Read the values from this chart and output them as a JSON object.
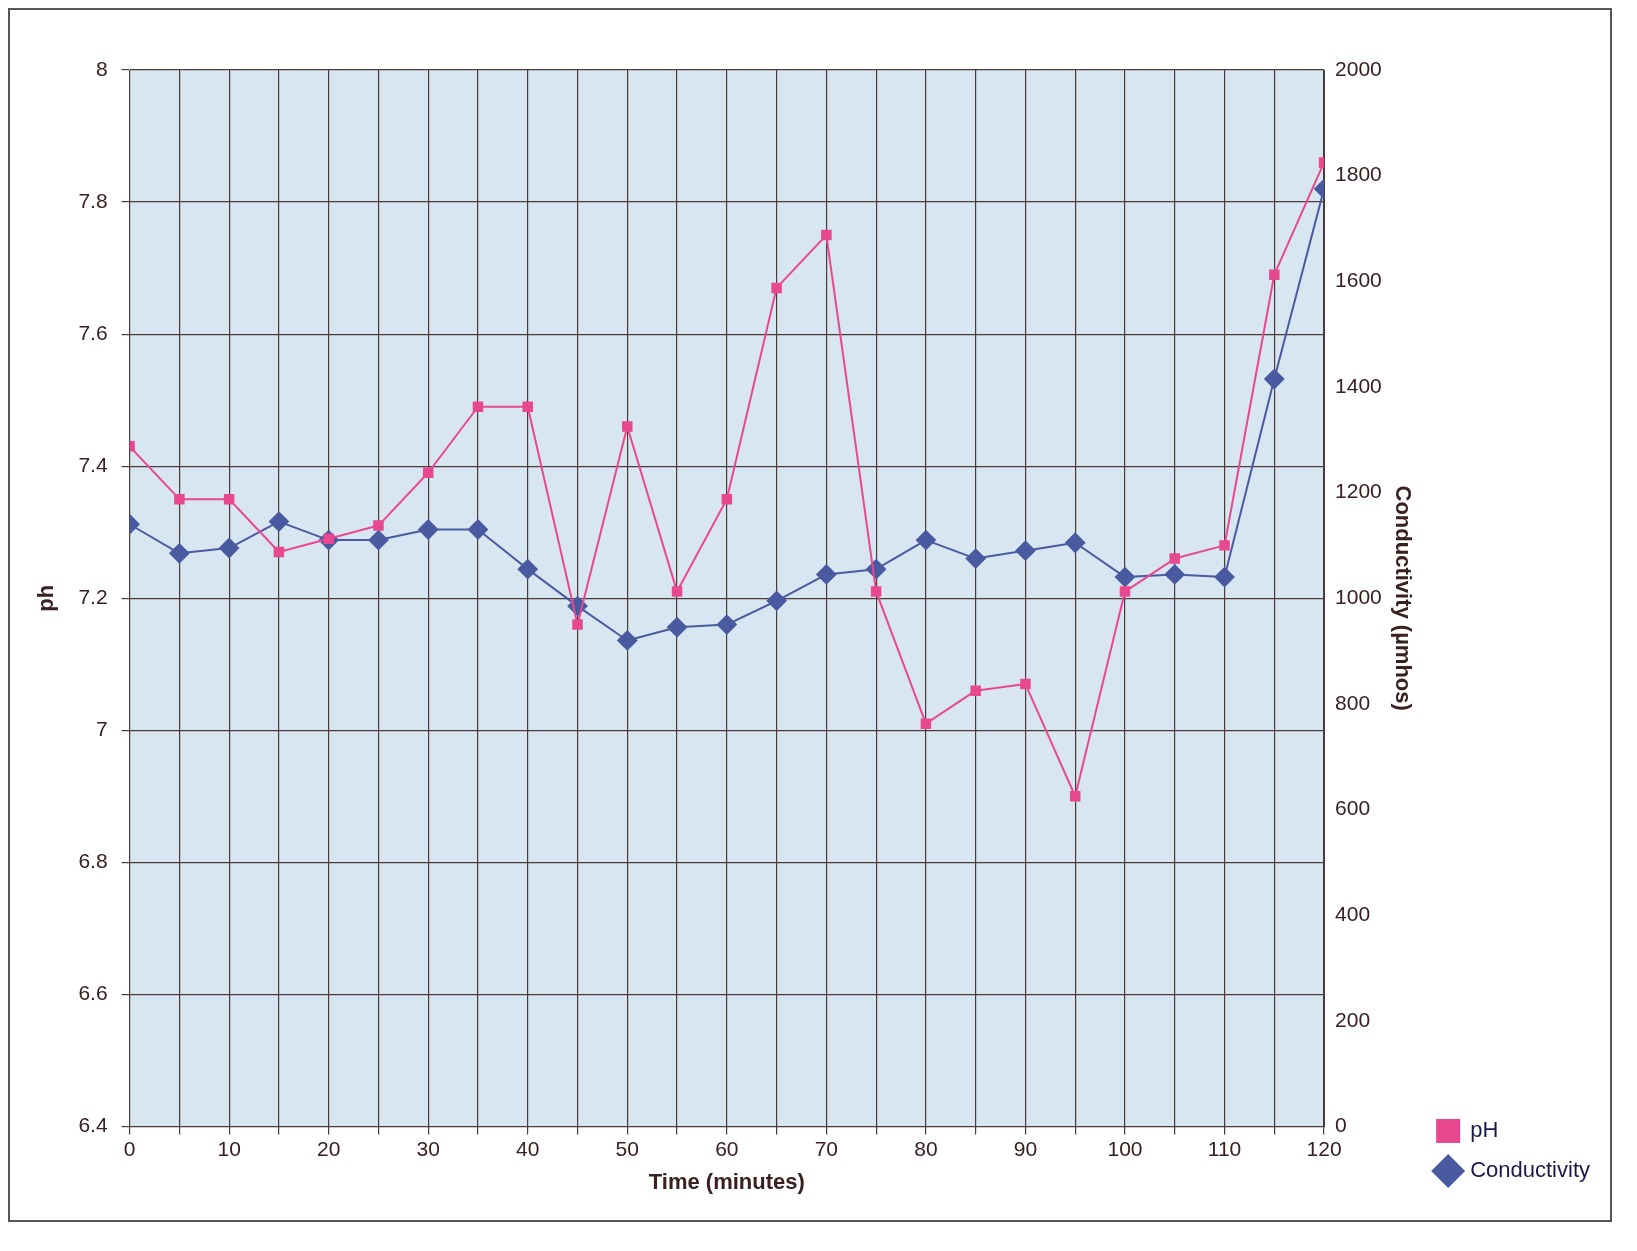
{
  "chart_data": {
    "type": "line",
    "xlabel": "Time (minutes)",
    "ylabel": "ph",
    "y2label": "Conductivity (µmhos)",
    "x": [
      0,
      5,
      10,
      15,
      20,
      25,
      30,
      35,
      40,
      45,
      50,
      55,
      60,
      65,
      70,
      75,
      80,
      85,
      90,
      95,
      100,
      105,
      110,
      115,
      120
    ],
    "series": [
      {
        "name": "pH",
        "color": "#e8488f",
        "marker": "square",
        "values": [
          7.43,
          7.35,
          7.35,
          7.27,
          7.29,
          7.31,
          7.39,
          7.49,
          7.49,
          7.16,
          7.46,
          7.21,
          7.35,
          7.67,
          7.75,
          7.21,
          7.01,
          7.06,
          7.07,
          6.9,
          7.21,
          7.26,
          7.28,
          7.69,
          7.86
        ]
      },
      {
        "name": "Conductivity",
        "color": "#4a5aa0",
        "marker": "diamond",
        "axis": "y2",
        "values": [
          1140,
          1085,
          1095,
          1145,
          1110,
          1110,
          1130,
          1130,
          1055,
          985,
          920,
          945,
          950,
          995,
          1045,
          1055,
          1110,
          1075,
          1090,
          1105,
          1040,
          1045,
          1040,
          1415,
          1775
        ]
      }
    ],
    "xlim": [
      0,
      120
    ],
    "xticks": [
      0,
      {
        "value": 5,
        "label": null
      },
      10,
      {
        "value": 15,
        "label": null
      },
      20,
      {
        "value": 25,
        "label": null
      },
      30,
      {
        "value": 35,
        "label": null
      },
      40,
      {
        "value": 45,
        "label": null
      },
      50,
      {
        "value": 55,
        "label": null
      },
      60,
      {
        "value": 65,
        "label": null
      },
      70,
      {
        "value": 75,
        "label": null
      },
      80,
      {
        "value": 85,
        "label": null
      },
      90,
      {
        "value": 95,
        "label": null
      },
      100,
      {
        "value": 105,
        "label": null
      },
      110,
      {
        "value": 115,
        "label": null
      },
      120
    ],
    "ylim": [
      6.4,
      8
    ],
    "yticks": [
      6.4,
      6.6,
      6.8,
      7,
      7.2,
      7.4,
      7.6,
      7.8,
      8
    ],
    "y2lim": [
      0,
      2000
    ],
    "y2ticks": [
      0,
      200,
      400,
      600,
      800,
      1000,
      1200,
      1400,
      1600,
      1800,
      2000
    ],
    "grid": true,
    "legend": "bottom right",
    "line_style": "solid"
  }
}
